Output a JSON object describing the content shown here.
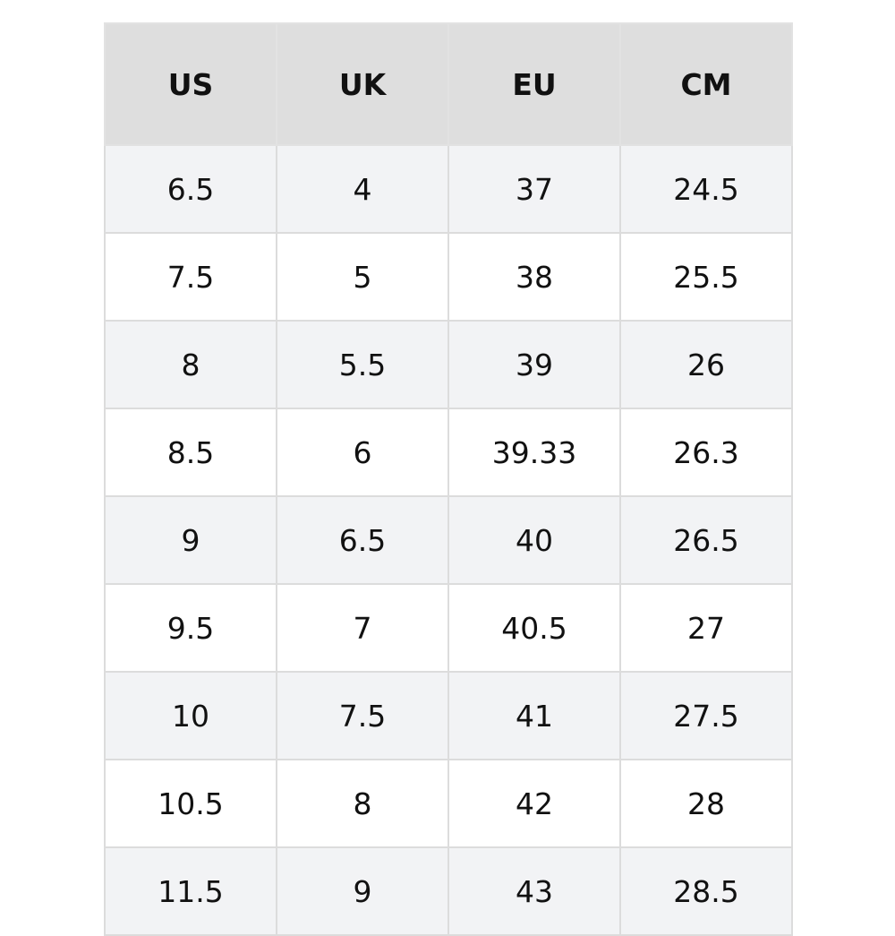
{
  "table": {
    "header": [
      "US",
      "UK",
      "EU",
      "CM"
    ],
    "rows": [
      [
        "6.5",
        "4",
        "37",
        "24.5"
      ],
      [
        "7.5",
        "5",
        "38",
        "25.5"
      ],
      [
        "8",
        "5.5",
        "39",
        "26"
      ],
      [
        "8.5",
        "6",
        "39.33",
        "26.3"
      ],
      [
        "9",
        "6.5",
        "40",
        "26.5"
      ],
      [
        "9.5",
        "7",
        "40.5",
        "27"
      ],
      [
        "10",
        "7.5",
        "41",
        "27.5"
      ],
      [
        "10.5",
        "8",
        "42",
        "28"
      ],
      [
        "11.5",
        "9",
        "43",
        "28.5"
      ]
    ]
  }
}
